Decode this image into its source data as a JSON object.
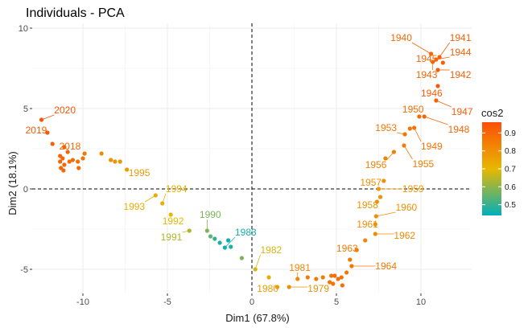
{
  "chart_data": {
    "type": "scatter",
    "title": "Individuals - PCA",
    "xlabel": "Dim1 (67.8%)",
    "ylabel": "Dim2 (18.1%)",
    "xlim": [
      -13,
      13
    ],
    "ylim": [
      -6.5,
      10.3
    ],
    "x_ticks": [
      -10,
      -5,
      0,
      5,
      10
    ],
    "y_ticks": [
      -5,
      0,
      5,
      10
    ],
    "x_tick_labels": [
      "-10",
      "-5",
      "0",
      "5",
      "10"
    ],
    "y_tick_labels": [
      "-5",
      "0",
      "5",
      "10"
    ],
    "grid": true,
    "reference_lines": {
      "x": 0,
      "y": 0,
      "style": "dashed"
    },
    "legend": {
      "title": "cos2",
      "placement": "right",
      "breaks": [
        0.5,
        0.6,
        0.7,
        0.8,
        0.9
      ],
      "break_labels": [
        "0.5",
        "0.6",
        "0.7",
        "0.8",
        "0.9"
      ],
      "range": [
        0.44,
        0.96
      ],
      "colors": [
        "#00AFBB",
        "#E7B800",
        "#FC4E07"
      ]
    },
    "points": [
      {
        "x": 10.6,
        "y": 8.4,
        "cos2": 0.9
      },
      {
        "x": 11.1,
        "y": 8.2,
        "cos2": 0.92
      },
      {
        "x": 10.9,
        "y": 8.05,
        "cos2": 0.91
      },
      {
        "x": 10.7,
        "y": 7.9,
        "cos2": 0.9
      },
      {
        "x": 11.3,
        "y": 7.85,
        "cos2": 0.92
      },
      {
        "x": 11.0,
        "y": 7.4,
        "cos2": 0.92
      },
      {
        "x": 11.0,
        "y": 6.4,
        "cos2": 0.93
      },
      {
        "x": 10.9,
        "y": 5.5,
        "cos2": 0.92
      },
      {
        "x": 10.2,
        "y": 4.5,
        "cos2": 0.9
      },
      {
        "x": 9.9,
        "y": 4.5,
        "cos2": 0.88
      },
      {
        "x": 9.6,
        "y": 3.8,
        "cos2": 0.87
      },
      {
        "x": 9.35,
        "y": 3.75,
        "cos2": 0.86
      },
      {
        "x": 9.05,
        "y": 3.4,
        "cos2": 0.86
      },
      {
        "x": 9.0,
        "y": 2.7,
        "cos2": 0.85
      },
      {
        "x": 8.4,
        "y": 2.3,
        "cos2": 0.84
      },
      {
        "x": 7.9,
        "y": 1.9,
        "cos2": 0.83
      },
      {
        "x": 7.8,
        "y": 0.5,
        "cos2": 0.8
      },
      {
        "x": 7.5,
        "y": 0,
        "cos2": 0.78
      },
      {
        "x": 7.6,
        "y": -0.5,
        "cos2": 0.79
      },
      {
        "x": 7.4,
        "y": -0.8,
        "cos2": 0.79
      },
      {
        "x": 7.35,
        "y": -1.7,
        "cos2": 0.8
      },
      {
        "x": 7.3,
        "y": -2.2,
        "cos2": 0.8
      },
      {
        "x": 7.3,
        "y": -2.8,
        "cos2": 0.81
      },
      {
        "x": 6.7,
        "y": -3.2,
        "cos2": 0.83
      },
      {
        "x": 6.2,
        "y": -3.8,
        "cos2": 0.85
      },
      {
        "x": 5.8,
        "y": -4.4,
        "cos2": 0.86
      },
      {
        "x": 5.9,
        "y": -4.8,
        "cos2": 0.86
      },
      {
        "x": 5.6,
        "y": -5.2,
        "cos2": 0.86
      },
      {
        "x": 5.3,
        "y": -5.5,
        "cos2": 0.87
      },
      {
        "x": 5.1,
        "y": -5.6,
        "cos2": 0.88
      },
      {
        "x": 4.9,
        "y": -5.4,
        "cos2": 0.88
      },
      {
        "x": 4.7,
        "y": -5.4,
        "cos2": 0.87
      },
      {
        "x": 5.35,
        "y": -6.0,
        "cos2": 0.88
      },
      {
        "x": 4.8,
        "y": -5.9,
        "cos2": 0.87
      },
      {
        "x": 4.6,
        "y": -5.8,
        "cos2": 0.87
      },
      {
        "x": 3.8,
        "y": -5.6,
        "cos2": 0.85
      },
      {
        "x": 4.2,
        "y": -5.5,
        "cos2": 0.85
      },
      {
        "x": 3.3,
        "y": -5.5,
        "cos2": 0.84
      },
      {
        "x": 2.7,
        "y": -5.6,
        "cos2": 0.82
      },
      {
        "x": 2.2,
        "y": -6.1,
        "cos2": 0.8
      },
      {
        "x": 1.5,
        "y": -6.1,
        "cos2": 0.77
      },
      {
        "x": 1.0,
        "y": -5.5,
        "cos2": 0.73
      },
      {
        "x": 0.2,
        "y": -5.0,
        "cos2": 0.68
      },
      {
        "x": -0.6,
        "y": -4.3,
        "cos2": 0.58
      },
      {
        "x": -1.25,
        "y": -3.6,
        "cos2": 0.47
      },
      {
        "x": -1.4,
        "y": -3.2,
        "cos2": 0.45
      },
      {
        "x": -1.6,
        "y": -3.65,
        "cos2": 0.46
      },
      {
        "x": -1.9,
        "y": -3.35,
        "cos2": 0.47
      },
      {
        "x": -2.2,
        "y": -3.1,
        "cos2": 0.5
      },
      {
        "x": -2.45,
        "y": -2.95,
        "cos2": 0.55
      },
      {
        "x": -2.65,
        "y": -2.6,
        "cos2": 0.58
      },
      {
        "x": -3.7,
        "y": -2.6,
        "cos2": 0.64
      },
      {
        "x": -4.8,
        "y": -1.6,
        "cos2": 0.7
      },
      {
        "x": -5.3,
        "y": -0.9,
        "cos2": 0.72
      },
      {
        "x": -5.7,
        "y": -0.4,
        "cos2": 0.73
      },
      {
        "x": -7.4,
        "y": 1.2,
        "cos2": 0.77
      },
      {
        "x": -7.8,
        "y": 1.7,
        "cos2": 0.78
      },
      {
        "x": -8.1,
        "y": 1.7,
        "cos2": 0.79
      },
      {
        "x": -8.35,
        "y": 1.8,
        "cos2": 0.8
      },
      {
        "x": -8.9,
        "y": 2.2,
        "cos2": 0.82
      },
      {
        "x": -9.9,
        "y": 2.2,
        "cos2": 0.86
      },
      {
        "x": -10.0,
        "y": 1.9,
        "cos2": 0.87
      },
      {
        "x": -10.3,
        "y": 1.7,
        "cos2": 0.88
      },
      {
        "x": -10.25,
        "y": 1.3,
        "cos2": 0.89
      },
      {
        "x": -10.6,
        "y": 1.8,
        "cos2": 0.89
      },
      {
        "x": -10.8,
        "y": 1.7,
        "cos2": 0.89
      },
      {
        "x": -10.9,
        "y": 2.3,
        "cos2": 0.9
      },
      {
        "x": -11.2,
        "y": 1.9,
        "cos2": 0.9
      },
      {
        "x": -11.35,
        "y": 1.7,
        "cos2": 0.9
      },
      {
        "x": -11.1,
        "y": 1.5,
        "cos2": 0.9
      },
      {
        "x": -11.3,
        "y": 1.3,
        "cos2": 0.9
      },
      {
        "x": -11.15,
        "y": 1.15,
        "cos2": 0.9
      },
      {
        "x": -11.35,
        "y": 2.05,
        "cos2": 0.9
      },
      {
        "x": -11.1,
        "y": 2.6,
        "cos2": 0.91
      },
      {
        "x": -11.8,
        "y": 2.8,
        "cos2": 0.92
      },
      {
        "x": -12.1,
        "y": 3.5,
        "cos2": 0.93
      },
      {
        "x": -12.45,
        "y": 4.3,
        "cos2": 0.94
      }
    ],
    "labels": [
      {
        "text": "1940",
        "x": 8.2,
        "y": 9.2,
        "px": 10.6,
        "py": 8.4,
        "cos2": 0.9
      },
      {
        "text": "1941",
        "x": 11.7,
        "y": 9.2,
        "px": 11.1,
        "py": 8.2,
        "cos2": 0.92
      },
      {
        "text": "1944",
        "x": 11.7,
        "y": 8.3,
        "px": 10.9,
        "py": 8.05,
        "cos2": 0.91
      },
      {
        "text": "1945",
        "x": 9.7,
        "y": 7.9,
        "px": 10.7,
        "py": 7.9,
        "cos2": 0.9
      },
      {
        "text": "1943",
        "x": 9.7,
        "y": 6.9,
        "px": 10.7,
        "py": 7.9,
        "cos2": 0.9
      },
      {
        "text": "1942",
        "x": 11.7,
        "y": 6.9,
        "px": 11.0,
        "py": 7.4,
        "cos2": 0.92
      },
      {
        "text": "1946",
        "x": 10.0,
        "y": 5.75,
        "px": 11.0,
        "py": 6.4,
        "cos2": 0.93
      },
      {
        "text": "1947",
        "x": 11.8,
        "y": 4.6,
        "px": 10.9,
        "py": 5.5,
        "cos2": 0.92
      },
      {
        "text": "1950",
        "x": 8.9,
        "y": 4.75,
        "px": 9.9,
        "py": 4.5,
        "cos2": 0.88
      },
      {
        "text": "1953",
        "x": 7.3,
        "y": 3.6,
        "px": 9.05,
        "py": 3.4,
        "cos2": 0.86
      },
      {
        "text": "1948",
        "x": 11.6,
        "y": 3.5,
        "px": 10.2,
        "py": 4.5,
        "cos2": 0.9
      },
      {
        "text": "1949",
        "x": 10.0,
        "y": 2.45,
        "px": 9.6,
        "py": 3.8,
        "cos2": 0.87
      },
      {
        "text": "1955",
        "x": 9.5,
        "y": 1.35,
        "px": 9.0,
        "py": 2.7,
        "cos2": 0.85
      },
      {
        "text": "1956",
        "x": 6.7,
        "y": 1.3,
        "px": 8.4,
        "py": 2.3,
        "cos2": 0.84
      },
      {
        "text": "1957",
        "x": 6.4,
        "y": 0.2,
        "px": 7.8,
        "py": 0.5,
        "cos2": 0.8
      },
      {
        "text": "1959",
        "x": 8.9,
        "y": -0.2,
        "px": 7.5,
        "py": 0,
        "cos2": 0.78
      },
      {
        "text": "1958",
        "x": 6.2,
        "y": -1.2,
        "px": 7.4,
        "py": -0.8,
        "cos2": 0.79
      },
      {
        "text": "1960",
        "x": 8.5,
        "y": -1.35,
        "px": 7.35,
        "py": -1.7,
        "cos2": 0.8
      },
      {
        "text": "1961",
        "x": 6.2,
        "y": -2.4,
        "px": 7.3,
        "py": -2.2,
        "cos2": 0.8
      },
      {
        "text": "1962",
        "x": 8.4,
        "y": -3.1,
        "px": 7.3,
        "py": -2.8,
        "cos2": 0.81
      },
      {
        "text": "1963",
        "x": 5.0,
        "y": -3.9,
        "px": 6.2,
        "py": -3.8,
        "cos2": 0.85
      },
      {
        "text": "1964",
        "x": 7.3,
        "y": -5.0,
        "px": 5.9,
        "py": -4.8,
        "cos2": 0.86
      },
      {
        "text": "1981",
        "x": 2.2,
        "y": -5.1,
        "px": 2.7,
        "py": -5.6,
        "cos2": 0.82
      },
      {
        "text": "1980",
        "x": 0.3,
        "y": -6.4,
        "px": 1.5,
        "py": -6.1,
        "cos2": 0.77
      },
      {
        "text": "1979",
        "x": 3.3,
        "y": -6.4,
        "px": 2.2,
        "py": -6.1,
        "cos2": 0.8
      },
      {
        "text": "1982",
        "x": 0.5,
        "y": -4.0,
        "px": 0.2,
        "py": -5.0,
        "cos2": 0.68
      },
      {
        "text": "1983",
        "x": -1.0,
        "y": -2.9,
        "px": -1.6,
        "py": -3.65,
        "cos2": 0.46
      },
      {
        "text": "1990",
        "x": -3.1,
        "y": -1.8,
        "px": -2.65,
        "py": -2.6,
        "cos2": 0.58
      },
      {
        "text": "1992",
        "x": -5.3,
        "y": -2.2,
        "px": -4.8,
        "py": -1.6,
        "cos2": 0.7
      },
      {
        "text": "1991",
        "x": -5.4,
        "y": -3.2,
        "px": -3.7,
        "py": -2.6,
        "cos2": 0.64
      },
      {
        "text": "1993",
        "x": -7.6,
        "y": -1.3,
        "px": -5.7,
        "py": -0.4,
        "cos2": 0.73
      },
      {
        "text": "1994",
        "x": -5.1,
        "y": -0.2,
        "px": -5.3,
        "py": -0.9,
        "cos2": 0.72
      },
      {
        "text": "1995",
        "x": -7.3,
        "y": 0.8,
        "px": -7.4,
        "py": 1.2,
        "cos2": 0.77
      },
      {
        "text": "2018",
        "x": -11.4,
        "y": 2.45,
        "px": -10.9,
        "py": 2.3,
        "cos2": 0.9
      },
      {
        "text": "2019",
        "x": -13.4,
        "y": 3.45,
        "px": -12.1,
        "py": 3.5,
        "cos2": 0.93
      },
      {
        "text": "2020",
        "x": -11.7,
        "y": 4.7,
        "px": -12.45,
        "py": 4.3,
        "cos2": 0.94
      }
    ]
  }
}
